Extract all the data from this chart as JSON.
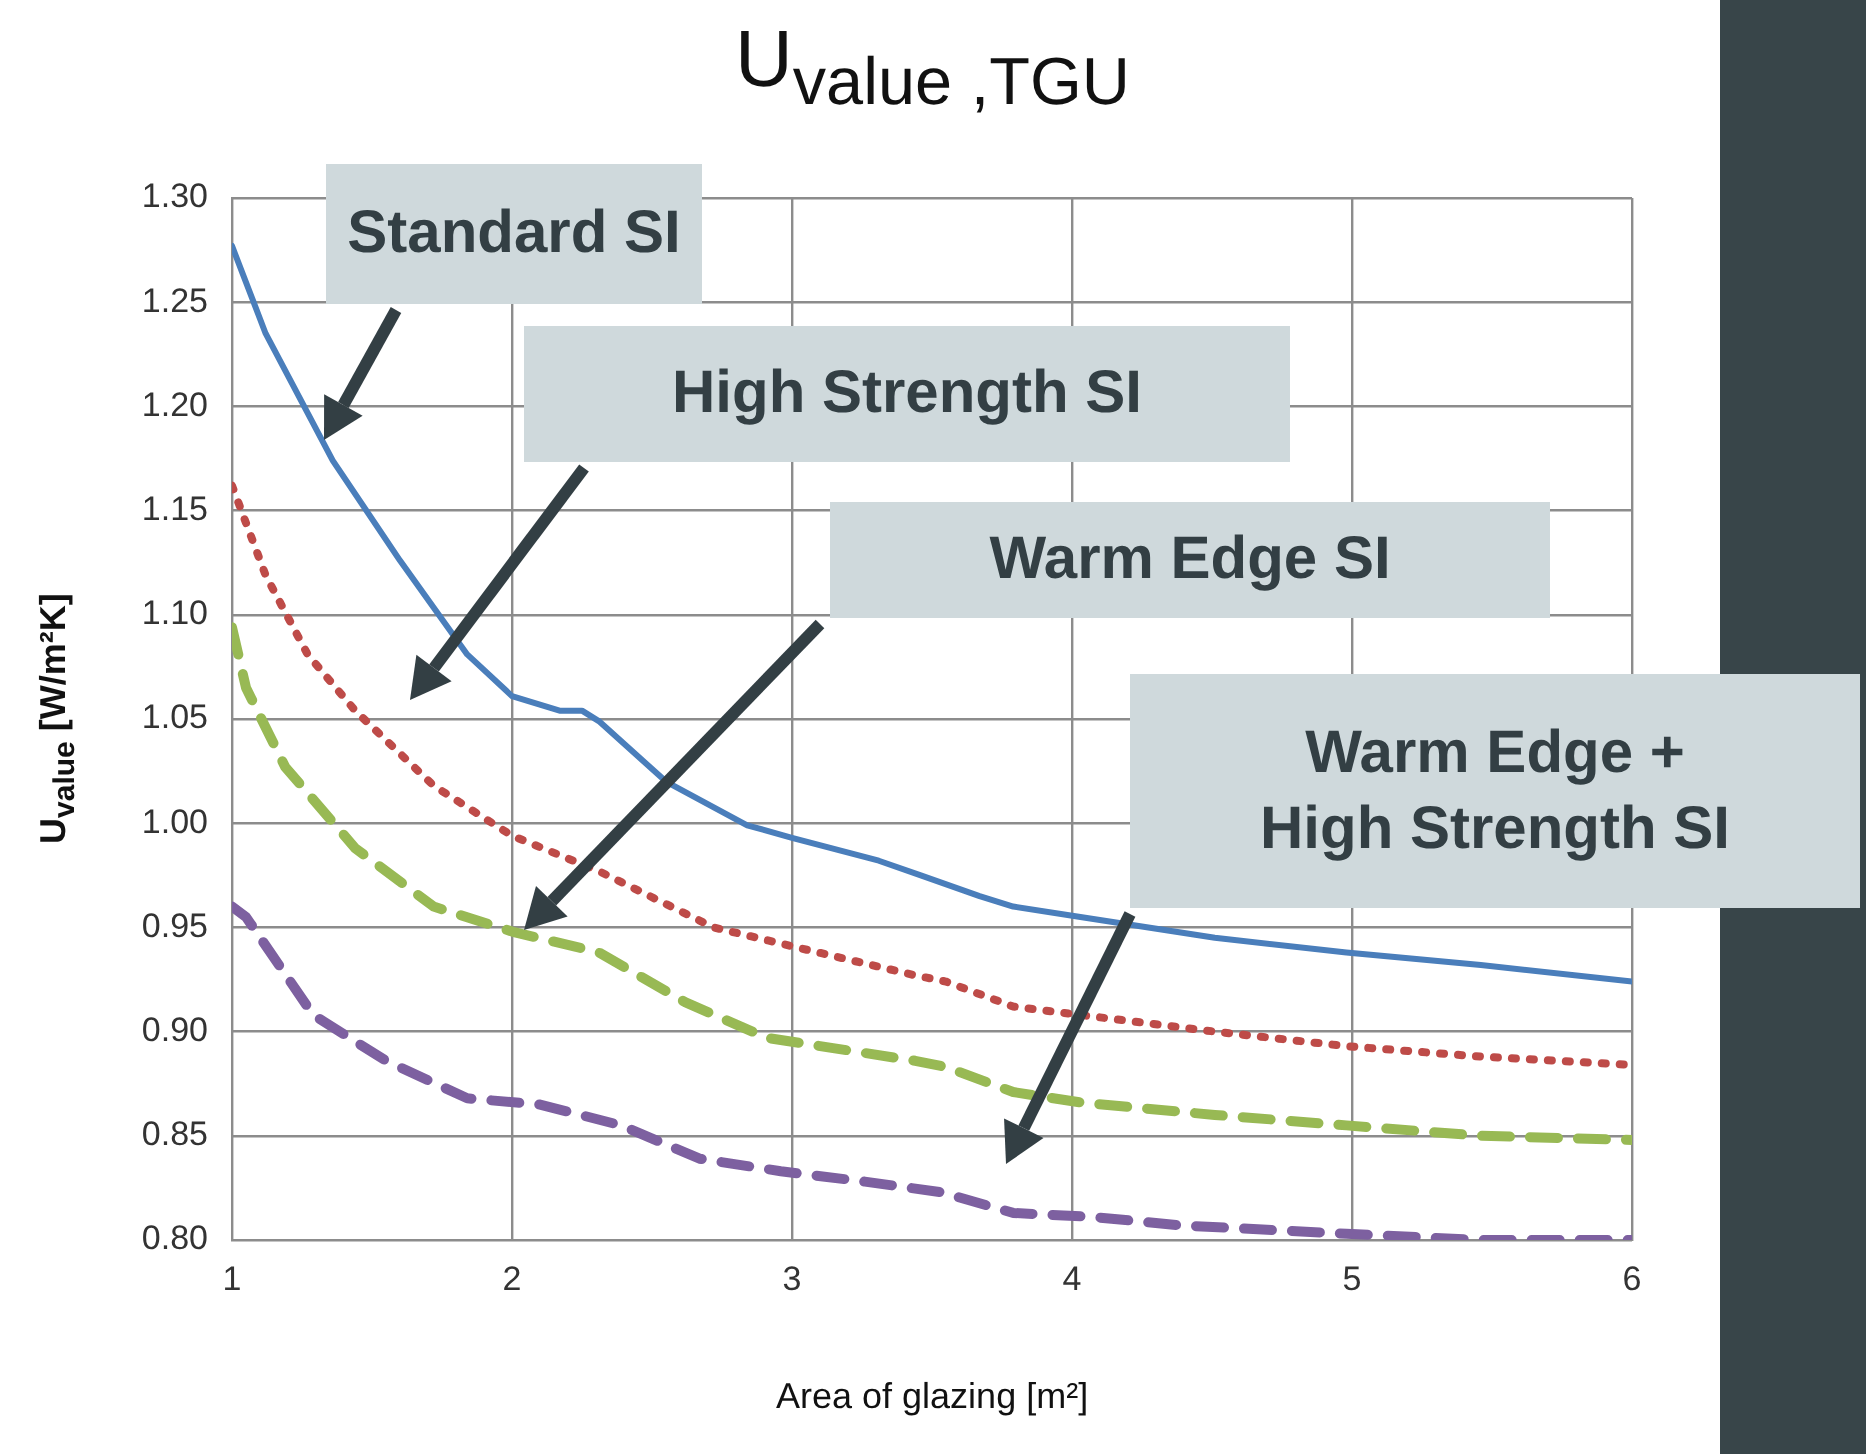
{
  "chart_data": {
    "type": "line",
    "title": "U$_{value ,TGU}$",
    "xlabel": "Area of glazing [m²]",
    "ylabel": "U$_{value}$ [W/m²K]",
    "xlim": [
      1,
      6
    ],
    "xticks": [
      1,
      2,
      3,
      4,
      5,
      6
    ],
    "ylim": [
      0.8,
      1.3
    ],
    "yticks": [
      {
        "value": 0.8,
        "label": "0.80"
      },
      {
        "value": 0.85,
        "label": "0.85"
      },
      {
        "value": 0.9,
        "label": "0.90"
      },
      {
        "value": 0.95,
        "label": "0.95"
      },
      {
        "value": 1.0,
        "label": "1.00"
      },
      {
        "value": 1.05,
        "label": "1.05"
      },
      {
        "value": 1.1,
        "label": "1.10"
      },
      {
        "value": 1.15,
        "label": "1.15"
      },
      {
        "value": 1.2,
        "label": "1.20"
      },
      {
        "value": 1.25,
        "label": "1.25"
      },
      {
        "value": 1.3,
        "label": "1.30"
      }
    ],
    "grid": true,
    "series": [
      {
        "color": "#4a7ebb",
        "line_style": "solid",
        "x": [
          1.0,
          1.12,
          1.36,
          1.6,
          1.84,
          2.0,
          2.17,
          2.25,
          2.31,
          2.55,
          2.84,
          3.0,
          3.31,
          3.46,
          3.67,
          3.79,
          4.03,
          4.51,
          4.98,
          5.46,
          6.0
        ],
        "values": [
          1.277,
          1.235,
          1.174,
          1.126,
          1.081,
          1.061,
          1.054,
          1.054,
          1.049,
          1.02,
          0.999,
          0.993,
          0.982,
          0.975,
          0.965,
          0.96,
          0.955,
          0.945,
          0.938,
          0.932,
          0.924
        ]
      },
      {
        "color": "#be4b48",
        "line_style": "dotted",
        "x": [
          1.0,
          1.12,
          1.27,
          1.44,
          1.72,
          2.0,
          2.31,
          2.72,
          3.03,
          3.44,
          3.55,
          3.79,
          4.03,
          4.51,
          4.98,
          5.46,
          6.0
        ],
        "values": [
          1.162,
          1.119,
          1.081,
          1.054,
          1.018,
          0.994,
          0.977,
          0.95,
          0.94,
          0.927,
          0.924,
          0.912,
          0.908,
          0.9,
          0.893,
          0.888,
          0.884
        ]
      },
      {
        "color": "#98b954",
        "line_style": "dashed",
        "x": [
          1.0,
          1.05,
          1.19,
          1.44,
          1.72,
          2.0,
          2.31,
          2.62,
          2.91,
          3.44,
          3.55,
          3.79,
          4.03,
          4.51,
          4.98,
          5.46,
          6.0
        ],
        "values": [
          1.094,
          1.065,
          1.027,
          0.988,
          0.96,
          0.948,
          0.938,
          0.914,
          0.897,
          0.886,
          0.883,
          0.871,
          0.866,
          0.86,
          0.855,
          0.85,
          0.848
        ]
      },
      {
        "color": "#7d60a0",
        "line_style": "dashed",
        "x": [
          1.0,
          1.05,
          1.29,
          1.55,
          1.84,
          2.1,
          2.39,
          2.67,
          2.96,
          3.26,
          3.53,
          3.79,
          4.08,
          4.39,
          4.98,
          5.46,
          6.0
        ],
        "values": [
          0.96,
          0.955,
          0.908,
          0.886,
          0.868,
          0.865,
          0.855,
          0.839,
          0.833,
          0.828,
          0.823,
          0.813,
          0.811,
          0.807,
          0.803,
          0.8,
          0.8
        ]
      }
    ],
    "annotations": [
      "Standard SI",
      "High Strength SI",
      "Warm Edge SI",
      "Warm Edge +\nHigh Strength SI"
    ]
  }
}
